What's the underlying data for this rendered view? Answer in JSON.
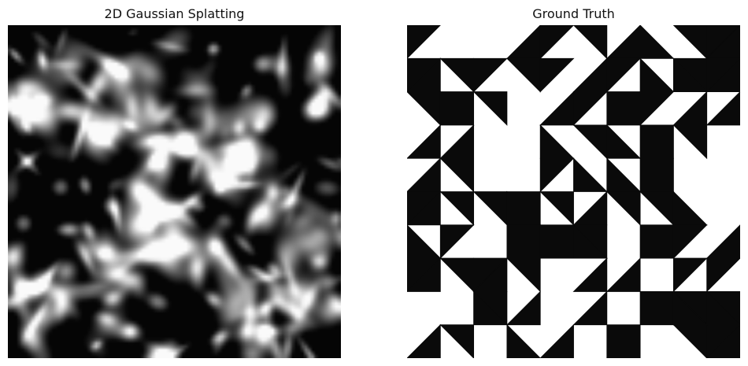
{
  "panels": {
    "left": {
      "title": "2D Gaussian Splatting",
      "image": "blurred grayscale splat reconstruction"
    },
    "right": {
      "title": "Ground Truth",
      "image": "black and white triangle tiling pattern"
    }
  },
  "colors": {
    "background": "#ffffff",
    "ink": "#0a0a0a",
    "paper": "#ffffff",
    "title_text": "#111111"
  }
}
